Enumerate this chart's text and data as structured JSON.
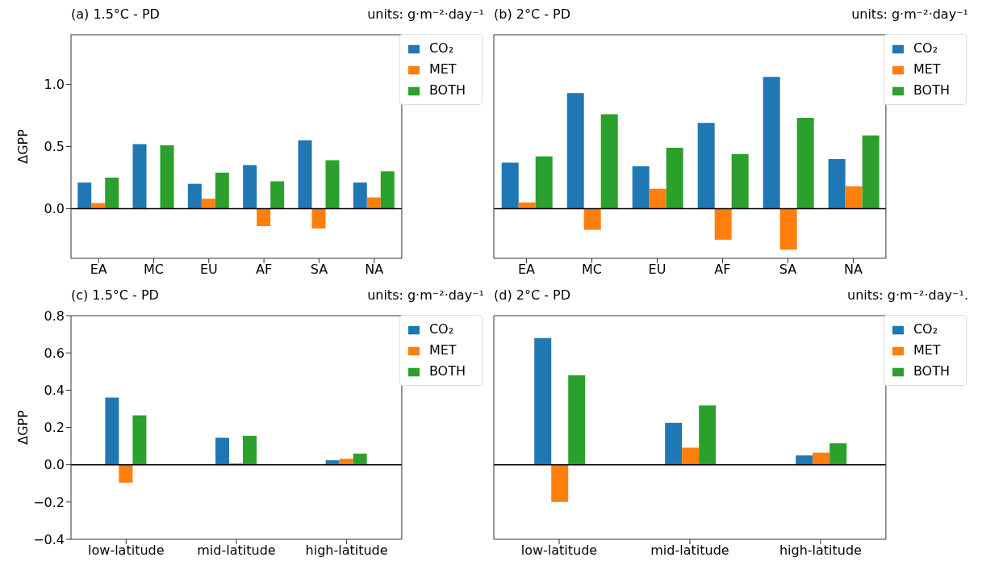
{
  "chart_data": [
    {
      "type": "bar",
      "title": "(a) 1.5°C - PD",
      "ylabel": "ΔGPP",
      "annotations": [
        "units: g·m⁻²·day⁻¹"
      ],
      "categories": [
        "EA",
        "MC",
        "EU",
        "AF",
        "SA",
        "NA"
      ],
      "series": [
        {
          "name": "CO₂",
          "color": "#1f77b4",
          "values": [
            0.21,
            0.52,
            0.2,
            0.35,
            0.55,
            0.21
          ]
        },
        {
          "name": "MET",
          "color": "#ff7f0e",
          "values": [
            0.045,
            0,
            0.08,
            -0.14,
            -0.16,
            0.09
          ]
        },
        {
          "name": "BOTH",
          "color": "#2ca02c",
          "values": [
            0.25,
            0.51,
            0.29,
            0.22,
            0.39,
            0.3
          ]
        }
      ],
      "ylim": [
        -0.4,
        1.4
      ],
      "yticks": [
        {
          "value": 0,
          "label": "0.0"
        },
        {
          "value": 0.5,
          "label": "0.5"
        },
        {
          "value": 1,
          "label": "1.0"
        }
      ],
      "ref_lines": [
        {
          "axis": "y",
          "value": 0,
          "color": "#000000"
        }
      ],
      "legend": "top right"
    },
    {
      "type": "bar",
      "title": "(b) 2°C - PD",
      "annotations": [
        "units: g·m⁻²·day⁻¹"
      ],
      "categories": [
        "EA",
        "MC",
        "EU",
        "AF",
        "SA",
        "NA"
      ],
      "series": [
        {
          "name": "CO₂",
          "color": "#1f77b4",
          "values": [
            0.37,
            0.93,
            0.34,
            0.69,
            1.06,
            0.4
          ]
        },
        {
          "name": "MET",
          "color": "#ff7f0e",
          "values": [
            0.05,
            -0.17,
            0.16,
            -0.25,
            -0.33,
            0.18
          ]
        },
        {
          "name": "BOTH",
          "color": "#2ca02c",
          "values": [
            0.42,
            0.76,
            0.49,
            0.44,
            0.73,
            0.59
          ]
        }
      ],
      "ylim": [
        -0.4,
        1.4
      ],
      "tick_labels": "x",
      "ref_lines": [
        {
          "axis": "y",
          "value": 0,
          "color": "#000000"
        }
      ],
      "legend": "top right"
    },
    {
      "type": "bar",
      "title": "(c) 1.5°C - PD",
      "ylabel": "ΔGPP",
      "annotations": [
        "units: g·m⁻²·day⁻¹"
      ],
      "categories": [
        "low-latitude",
        "mid-latitude",
        "high-latitude"
      ],
      "series": [
        {
          "name": "CO₂",
          "color": "#1f77b4",
          "values": [
            0.36,
            0.145,
            0.024
          ]
        },
        {
          "name": "MET",
          "color": "#ff7f0e",
          "values": [
            -0.096,
            0.008,
            0.032
          ]
        },
        {
          "name": "BOTH",
          "color": "#2ca02c",
          "values": [
            0.265,
            0.155,
            0.06
          ]
        }
      ],
      "ylim": [
        -0.4,
        0.8
      ],
      "yticks": [
        {
          "value": -0.4,
          "label": "−0.4"
        },
        {
          "value": -0.2,
          "label": "−0.2"
        },
        {
          "value": 0,
          "label": "0.0"
        },
        {
          "value": 0.2,
          "label": "0.2"
        },
        {
          "value": 0.4,
          "label": "0.4"
        },
        {
          "value": 0.6,
          "label": "0.6"
        },
        {
          "value": 0.8,
          "label": "0.8"
        }
      ],
      "ref_lines": [
        {
          "axis": "y",
          "value": 0,
          "color": "#000000"
        }
      ],
      "legend": "top right"
    },
    {
      "type": "bar",
      "title": "(d) 2°C - PD",
      "annotations": [
        "units: g·m⁻²·day⁻¹."
      ],
      "categories": [
        "low-latitude",
        "mid-latitude",
        "high-latitude"
      ],
      "series": [
        {
          "name": "CO₂",
          "color": "#1f77b4",
          "values": [
            0.68,
            0.225,
            0.05
          ]
        },
        {
          "name": "MET",
          "color": "#ff7f0e",
          "values": [
            -0.2,
            0.092,
            0.065
          ]
        },
        {
          "name": "BOTH",
          "color": "#2ca02c",
          "values": [
            0.48,
            0.318,
            0.115
          ]
        }
      ],
      "ylim": [
        -0.4,
        0.8
      ],
      "tick_labels": "x",
      "ref_lines": [
        {
          "axis": "y",
          "value": 0,
          "color": "#000000"
        }
      ],
      "legend": "top right"
    }
  ]
}
